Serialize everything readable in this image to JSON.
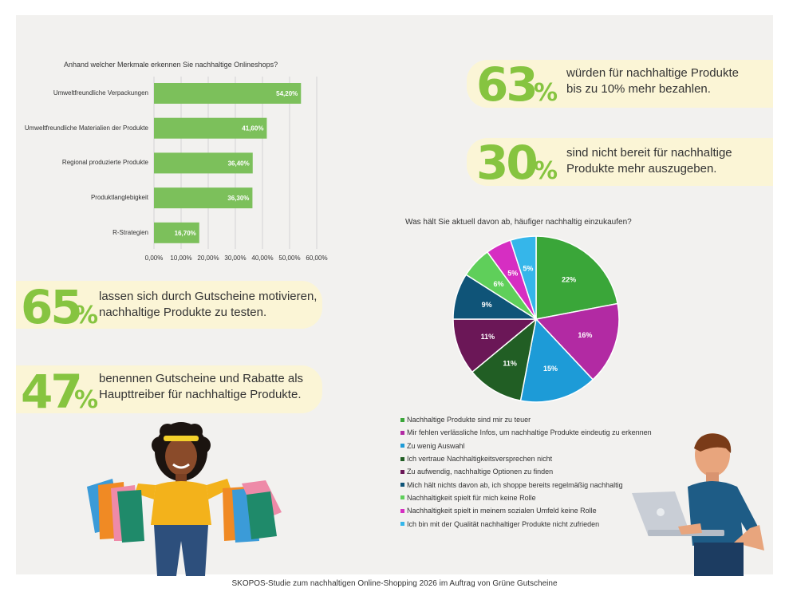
{
  "bar_chart": {
    "title": "Anhand welcher Merkmale erkennen Sie nachhaltige Onlineshops?"
  },
  "pie_chart": {
    "title": "Was hält Sie aktuell davon ab, häufiger nachhaltig einzukaufen?"
  },
  "stats": [
    {
      "number": "63",
      "percent": "%",
      "text_line1": "würden für nachhaltige Produkte",
      "text_line2": "bis zu 10% mehr bezahlen."
    },
    {
      "number": "30",
      "percent": "%",
      "text_line1": "sind nicht bereit für nachhaltige",
      "text_line2": "Produkte mehr auszugeben."
    },
    {
      "number": "65",
      "percent": "%",
      "text_line1": "lassen sich durch Gutscheine motivieren,",
      "text_line2": "nachhaltige Produkte zu testen."
    },
    {
      "number": "47",
      "percent": "%",
      "text_line1": "benennen Gutscheine und Rabatte als",
      "text_line2": "Haupttreiber für nachhaltige Produkte."
    }
  ],
  "footer": "SKOPOS-Studie zum nachhaltigen Online-Shopping 2026 im Auftrag von Grüne Gutscheine",
  "colors": {
    "bar": "#7cc05b",
    "accent": "#86c440",
    "stat_bg": "#fbf5d6",
    "panel": "#f2f1ef"
  },
  "chart_data": [
    {
      "type": "bar",
      "orientation": "horizontal",
      "title": "Anhand welcher Merkmale erkennen Sie nachhaltige Onlineshops?",
      "categories": [
        "Umweltfreundliche Verpackungen",
        "Umweltfreundliche Materialien der Produkte",
        "Regional produzierte Produkte",
        "Produktlanglebigkeit",
        "R-Strategien"
      ],
      "values": [
        54.2,
        41.6,
        36.4,
        36.3,
        16.7
      ],
      "value_labels": [
        "54,20%",
        "41,60%",
        "36,40%",
        "36,30%",
        "16,70%"
      ],
      "xlim": [
        0,
        60
      ],
      "ticks": [
        "0,00%",
        "10,00%",
        "20,00%",
        "30,00%",
        "40,00%",
        "50,00%",
        "60,00%"
      ],
      "grid": true,
      "color": "#7cc05b"
    },
    {
      "type": "pie",
      "title": "Was hält Sie aktuell davon ab, häufiger nachhaltig einzukaufen?",
      "legend_position": "bottom",
      "slices": [
        {
          "label": "Nachhaltige Produkte sind mir zu teuer",
          "value": 22,
          "display": "22%",
          "color": "#3aa639"
        },
        {
          "label": "Mir fehlen verlässliche Infos, um nachhaltige Produkte eindeutig zu erkennen",
          "value": 16,
          "display": "16%",
          "color": "#b22aa3"
        },
        {
          "label": "Zu wenig Auswahl",
          "value": 15,
          "display": "15%",
          "color": "#1d9bd7"
        },
        {
          "label": "Ich vertraue Nachhaltigkeitsversprechen nicht",
          "value": 11,
          "display": "11%",
          "color": "#215e24"
        },
        {
          "label": "Zu aufwendig, nachhaltige Optionen zu finden",
          "value": 11,
          "display": "11%",
          "color": "#6b1757"
        },
        {
          "label": "Mich hält nichts davon ab, ich shoppe bereits regelmäßig nachhaltig",
          "value": 9,
          "display": "9%",
          "color": "#0f5478"
        },
        {
          "label": "Nachhaltigkeit spielt für mich keine Rolle",
          "value": 6,
          "display": "6%",
          "color": "#5fcf5a"
        },
        {
          "label": "Nachhaltigkeit spielt in meinem sozialen Umfeld keine Rolle",
          "value": 5,
          "display": "5%",
          "color": "#d62ec2"
        },
        {
          "label": "Ich bin mit der Qualität nachhaltiger Produkte nicht zufrieden",
          "value": 5,
          "display": "5%",
          "color": "#35b6ea"
        }
      ]
    }
  ]
}
